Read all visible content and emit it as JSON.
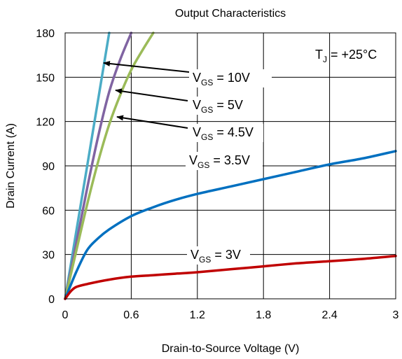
{
  "chart_data": {
    "type": "line",
    "title": "Output Characteristics",
    "xlabel": "Drain-to-Source Voltage (V)",
    "ylabel": "Drain Current (A)",
    "xlim": [
      0,
      3
    ],
    "ylim": [
      0,
      180
    ],
    "x_ticks": [
      "0",
      "0.6",
      "1.2",
      "1.8",
      "2.4",
      "3"
    ],
    "y_ticks": [
      "0",
      "30",
      "60",
      "90",
      "120",
      "150",
      "180"
    ],
    "grid": true,
    "annotation": "T_J = +25°C",
    "series": [
      {
        "name": "VGS = 10V",
        "color": "#4bacc6",
        "points": [
          [
            0,
            0
          ],
          [
            0.1,
            45
          ],
          [
            0.2,
            90
          ],
          [
            0.3,
            135
          ],
          [
            0.4,
            180
          ]
        ]
      },
      {
        "name": "VGS = 5V",
        "color": "#8064a2",
        "points": [
          [
            0,
            0
          ],
          [
            0.1,
            37
          ],
          [
            0.2,
            75
          ],
          [
            0.3,
            110
          ],
          [
            0.4,
            140
          ],
          [
            0.5,
            162
          ],
          [
            0.6,
            180
          ]
        ]
      },
      {
        "name": "VGS = 4.5V",
        "color": "#9bbb59",
        "points": [
          [
            0,
            0
          ],
          [
            0.1,
            32
          ],
          [
            0.2,
            64
          ],
          [
            0.3,
            93
          ],
          [
            0.4,
            118
          ],
          [
            0.5,
            138
          ],
          [
            0.6,
            155
          ],
          [
            0.7,
            168
          ],
          [
            0.8,
            180
          ]
        ]
      },
      {
        "name": "VGS = 3.5V",
        "color": "#0070c0",
        "points": [
          [
            0,
            0
          ],
          [
            0.1,
            18
          ],
          [
            0.2,
            33
          ],
          [
            0.3,
            41
          ],
          [
            0.4,
            47
          ],
          [
            0.6,
            56
          ],
          [
            0.8,
            62
          ],
          [
            1.0,
            67
          ],
          [
            1.2,
            71
          ],
          [
            1.5,
            76
          ],
          [
            1.8,
            81
          ],
          [
            2.1,
            86
          ],
          [
            2.4,
            91
          ],
          [
            2.7,
            95
          ],
          [
            3.0,
            100
          ]
        ]
      },
      {
        "name": "VGS = 3V",
        "color": "#c00000",
        "points": [
          [
            0,
            0
          ],
          [
            0.05,
            5
          ],
          [
            0.1,
            8
          ],
          [
            0.2,
            10
          ],
          [
            0.4,
            13
          ],
          [
            0.6,
            15
          ],
          [
            0.8,
            16
          ],
          [
            1.0,
            17
          ],
          [
            1.2,
            18
          ],
          [
            1.5,
            20
          ],
          [
            1.8,
            22
          ],
          [
            2.1,
            24
          ],
          [
            2.4,
            25.5
          ],
          [
            2.7,
            27
          ],
          [
            3.0,
            29
          ]
        ]
      }
    ],
    "series_labels": [
      {
        "main": "V",
        "sub": "GS",
        "rest": " = 10V",
        "color": "#4bacc6"
      },
      {
        "main": "V",
        "sub": "GS",
        "rest": " = 5V",
        "color": "#8064a2"
      },
      {
        "main": "V",
        "sub": "GS",
        "rest": " = 4.5V",
        "color": "#9bbb59"
      },
      {
        "main": "V",
        "sub": "GS",
        "rest": " = 3.5V",
        "color": "#0070c0"
      },
      {
        "main": "V",
        "sub": "GS",
        "rest": " = 3V",
        "color": "#c00000"
      }
    ],
    "tj_label": {
      "main": "T",
      "sub": "J",
      "rest": " = +25°C"
    }
  }
}
